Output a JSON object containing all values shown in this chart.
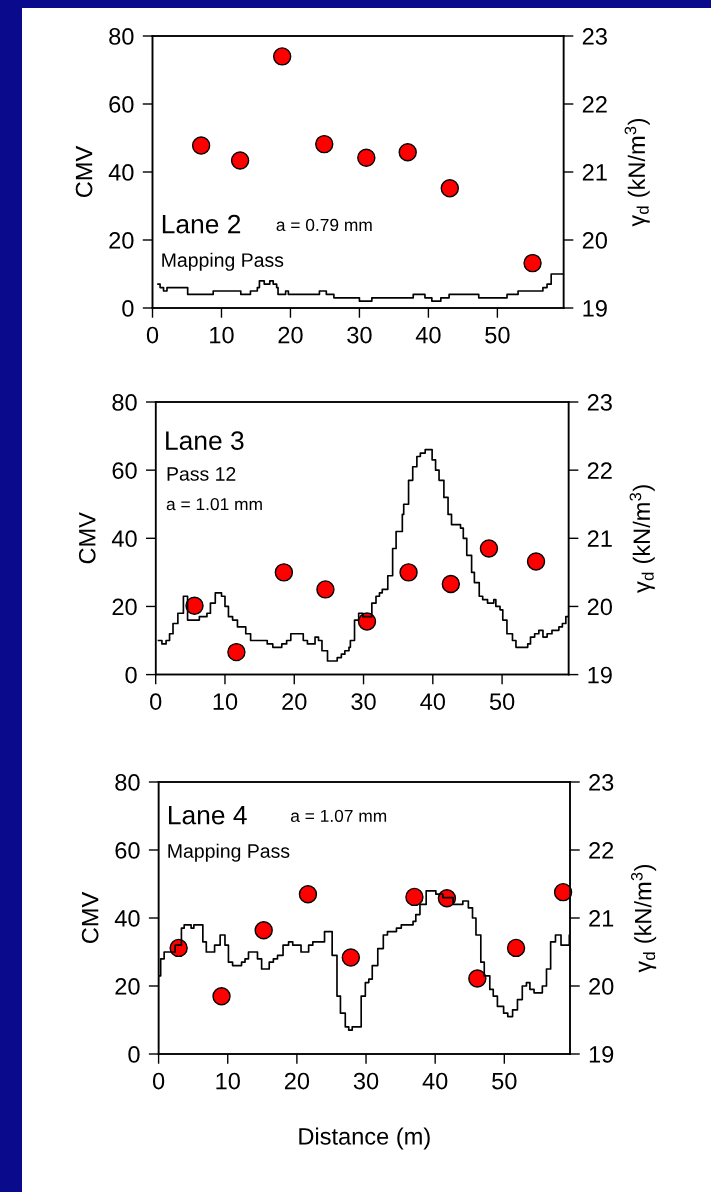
{
  "chart_data": [
    {
      "type": "step",
      "ylabel": "CMV",
      "y2label": "γ$_{d}$ (kN/m$^{3}$)",
      "xlim": [
        0,
        59.6
      ],
      "xticks": [
        0,
        10,
        20,
        30,
        40,
        50
      ],
      "ylim": [
        0,
        80
      ],
      "yticks": [
        0,
        20,
        40,
        60,
        80
      ],
      "y2lim": [
        19,
        23
      ],
      "y2ticks": [
        19,
        20,
        21,
        22,
        23
      ],
      "annotations": [
        "Lane 2",
        "a = 0.79 mm",
        "Mapping Pass"
      ],
      "series": [
        {
          "color": "#000000",
          "x": [
            0.8,
            1.1,
            1.6,
            2.1,
            5.1,
            8.8,
            12.8,
            14.2,
            15.2,
            15.5,
            16.2,
            17.0,
            17.5,
            18.0,
            18.2,
            19.3,
            19.7,
            24.2,
            25.2,
            26.3,
            30.0,
            31.8,
            37.8,
            39.5,
            40.5,
            41.8,
            43.0,
            47.3,
            51.4,
            53.0,
            56.6,
            57.2,
            57.8,
            59.6
          ],
          "values": [
            7,
            6,
            5,
            6,
            4,
            5,
            4,
            5,
            6,
            8,
            7,
            8,
            7,
            6,
            4,
            5,
            4,
            5,
            4,
            3,
            2,
            3,
            4,
            3,
            2,
            3,
            4,
            3,
            4,
            5,
            6,
            7,
            10,
            10
          ]
        },
        {
          "type": "scatter",
          "axis": "y2",
          "color": "#ff0000",
          "marker": "circle",
          "x": [
            7.05,
            12.7,
            18.8,
            24.9,
            31.0,
            37.0,
            43.1,
            55.1
          ],
          "values": [
            21.39,
            21.17,
            22.7,
            21.41,
            21.21,
            21.29,
            20.76,
            19.66
          ]
        }
      ]
    },
    {
      "type": "step",
      "ylabel": "CMV",
      "y2label": "γ$_{d}$ (kN/m$^{3}$)",
      "xlim": [
        0,
        59.6
      ],
      "xticks": [
        0,
        10,
        20,
        30,
        40,
        50
      ],
      "ylim": [
        0,
        80
      ],
      "yticks": [
        0,
        20,
        40,
        60,
        80
      ],
      "y2lim": [
        19,
        23
      ],
      "y2ticks": [
        19,
        20,
        21,
        22,
        23
      ],
      "annotations": [
        "Lane 3",
        "Pass 12",
        "a = 1.01 mm"
      ],
      "series": [
        {
          "color": "#000000",
          "x": [
            0.4,
            0.9,
            1.5,
            2.0,
            2.5,
            3.2,
            4.0,
            4.6,
            6.3,
            7.4,
            7.9,
            8.6,
            9.5,
            10.0,
            10.5,
            11.1,
            11.8,
            13.0,
            13.7,
            16.1,
            16.9,
            18.2,
            18.9,
            19.5,
            21.3,
            21.9,
            23.0,
            23.5,
            24.0,
            24.8,
            26.2,
            26.8,
            27.3,
            27.9,
            28.1,
            28.7,
            29.3,
            29.9,
            31.2,
            31.8,
            32.3,
            32.7,
            33.5,
            34.2,
            34.7,
            35.6,
            35.8,
            36.5,
            37.1,
            37.7,
            38.2,
            38.9,
            39.9,
            40.4,
            40.9,
            41.6,
            42.2,
            42.7,
            44.0,
            44.4,
            44.9,
            45.6,
            46.0,
            46.7,
            47.2,
            47.9,
            48.8,
            49.1,
            49.7,
            50.1,
            50.7,
            51.5,
            52.0,
            53.7,
            54.1,
            54.7,
            55.3,
            55.9,
            56.5,
            57.2,
            58.2,
            58.7,
            59.2,
            59.6
          ],
          "values": [
            10,
            9,
            10,
            12,
            15,
            18,
            23,
            16,
            17,
            18,
            21,
            24,
            23,
            20,
            17,
            16,
            14,
            12,
            10,
            9,
            8,
            9,
            10,
            12,
            10,
            9,
            11,
            10,
            7,
            4,
            5,
            6,
            7,
            8,
            10,
            16,
            18,
            17,
            21,
            23,
            24,
            25,
            29,
            37,
            42,
            47,
            50,
            57,
            61,
            64,
            65,
            66,
            63,
            60,
            57,
            52,
            47,
            44,
            43,
            40,
            35,
            30,
            27,
            23,
            22,
            21,
            22,
            20,
            19,
            16,
            12,
            10,
            8,
            9,
            11,
            12,
            13,
            11,
            12,
            13,
            14,
            15,
            17,
            17
          ]
        },
        {
          "type": "scatter",
          "axis": "y2",
          "color": "#ff0000",
          "marker": "circle",
          "x": [
            5.6,
            11.65,
            18.5,
            24.5,
            30.5,
            36.5,
            42.6,
            48.1,
            54.9
          ],
          "values": [
            20.01,
            19.33,
            20.5,
            20.25,
            19.78,
            20.5,
            20.33,
            20.85,
            20.66
          ]
        }
      ]
    },
    {
      "type": "step",
      "xlabel": "Distance (m)",
      "ylabel": "CMV",
      "y2label": "γ$_{d}$ (kN/m$^{3}$)",
      "xlim": [
        0,
        59.5
      ],
      "xticks": [
        0,
        10,
        20,
        30,
        40,
        50
      ],
      "ylim": [
        0,
        80
      ],
      "yticks": [
        0,
        20,
        40,
        60,
        80
      ],
      "y2lim": [
        19,
        23
      ],
      "y2ticks": [
        19,
        20,
        21,
        22,
        23
      ],
      "annotations": [
        "Lane 4",
        "a = 1.07 mm",
        "Mapping Pass"
      ],
      "series": [
        {
          "color": "#000000",
          "x": [
            0.0,
            0.3,
            0.8,
            2.4,
            3.3,
            3.7,
            4.7,
            5.1,
            6.4,
            6.9,
            8.1,
            8.9,
            9.6,
            10.1,
            10.7,
            12.0,
            12.5,
            13.0,
            14.3,
            14.9,
            16.0,
            16.6,
            17.2,
            18.0,
            18.8,
            19.4,
            20.6,
            21.7,
            22.3,
            24.0,
            25.1,
            25.8,
            26.3,
            27.0,
            27.5,
            28.0,
            29.3,
            29.9,
            30.4,
            30.9,
            31.7,
            32.5,
            33.1,
            34.4,
            35.1,
            36.8,
            37.2,
            37.8,
            38.7,
            40.1,
            41.1,
            42.6,
            44.0,
            44.8,
            45.4,
            45.9,
            46.6,
            47.1,
            47.9,
            48.4,
            49.0,
            49.9,
            50.5,
            51.2,
            51.9,
            52.6,
            53.2,
            53.7,
            54.3,
            55.5,
            56.1,
            56.7,
            57.4,
            58.2,
            59.4,
            59.5
          ],
          "values": [
            23,
            28,
            30,
            32,
            37,
            38,
            37,
            38,
            33,
            30,
            32,
            35,
            32,
            27,
            26,
            27,
            28,
            30,
            28,
            25,
            27,
            28,
            29,
            32,
            33,
            32,
            30,
            32,
            33,
            36,
            29,
            17,
            12,
            8,
            7,
            8,
            17,
            21,
            22,
            26,
            31,
            35,
            36,
            37,
            38,
            39,
            41,
            44,
            48,
            47,
            46,
            44,
            45,
            43,
            40,
            35,
            27,
            23,
            19,
            17,
            14,
            12,
            11,
            13,
            16,
            20,
            21,
            19,
            18,
            20,
            25,
            33,
            35,
            32,
            35,
            35
          ]
        },
        {
          "type": "scatter",
          "axis": "y2",
          "color": "#ff0000",
          "marker": "circle",
          "x": [
            2.9,
            9.1,
            15.2,
            21.6,
            27.8,
            37.0,
            41.7,
            46.1,
            51.7,
            58.5
          ],
          "values": [
            20.56,
            19.85,
            20.82,
            21.35,
            20.42,
            21.31,
            21.29,
            20.11,
            20.56,
            21.38
          ]
        }
      ]
    }
  ]
}
